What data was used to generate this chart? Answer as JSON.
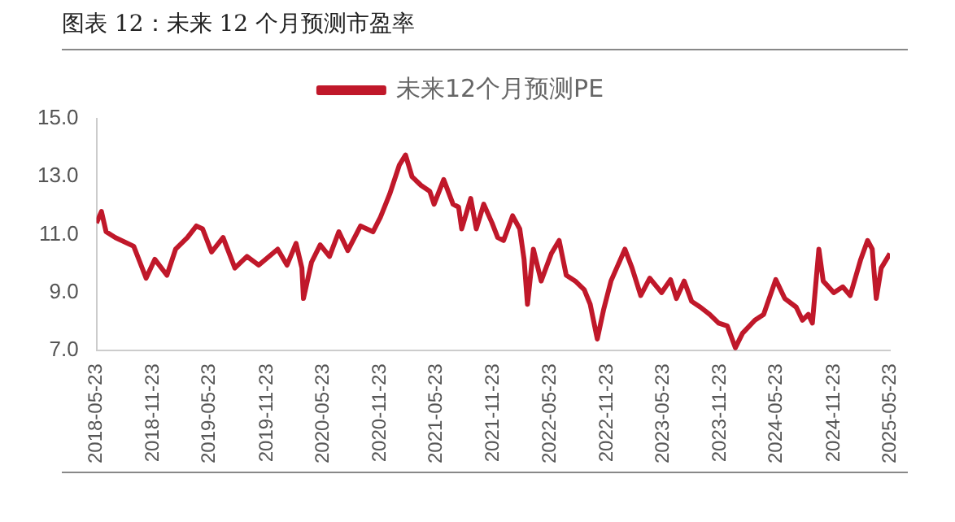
{
  "chart_data": {
    "type": "line",
    "title": "图表 12：未来 12 个月预测市盈率",
    "x": [
      "2018-05-23",
      "2018-06-08",
      "2018-06-23",
      "2018-07-23",
      "2018-09-20",
      "2018-10-10",
      "2018-10-30",
      "2018-11-27",
      "2019-01-05",
      "2019-02-02",
      "2019-03-12",
      "2019-04-10",
      "2019-04-30",
      "2019-05-29",
      "2019-07-05",
      "2019-08-12",
      "2019-09-20",
      "2019-10-28",
      "2019-12-28",
      "2020-01-27",
      "2020-02-25",
      "2020-03-15",
      "2020-03-20",
      "2020-04-15",
      "2020-05-13",
      "2020-06-12",
      "2020-07-12",
      "2020-08-10",
      "2020-09-20",
      "2020-10-30",
      "2020-11-23",
      "2020-12-23",
      "2021-01-23",
      "2021-02-12",
      "2021-03-05",
      "2021-04-03",
      "2021-05-01",
      "2021-05-15",
      "2021-06-15",
      "2021-07-15",
      "2021-08-02",
      "2021-08-12",
      "2021-09-10",
      "2021-09-28",
      "2021-10-22",
      "2021-11-18",
      "2021-12-06",
      "2021-12-25",
      "2022-01-23",
      "2022-02-15",
      "2022-03-01",
      "2022-03-12",
      "2022-03-31",
      "2022-04-25",
      "2022-05-28",
      "2022-06-22",
      "2022-07-15",
      "2022-08-13",
      "2022-09-11",
      "2022-09-30",
      "2022-10-23",
      "2022-11-12",
      "2022-12-06",
      "2023-01-20",
      "2023-02-12",
      "2023-03-12",
      "2023-04-10",
      "2023-05-18",
      "2023-06-16",
      "2023-07-05",
      "2023-07-30",
      "2023-08-23",
      "2023-09-20",
      "2023-10-20",
      "2023-11-18",
      "2023-12-16",
      "2024-01-11",
      "2024-02-03",
      "2024-03-14",
      "2024-04-11",
      "2024-05-20",
      "2024-06-18",
      "2024-07-25",
      "2024-08-14",
      "2024-09-02",
      "2024-09-15",
      "2024-10-06",
      "2024-10-20",
      "2024-11-23",
      "2024-12-22",
      "2025-01-15",
      "2025-02-18",
      "2025-03-12",
      "2025-03-27",
      "2025-04-09",
      "2025-04-25",
      "2025-05-23"
    ],
    "series": [
      {
        "name": "未来12个月预测PE",
        "color": "#c0182a",
        "values": [
          11.4,
          11.8,
          11.1,
          10.9,
          10.6,
          10.05,
          9.5,
          10.15,
          9.6,
          10.5,
          10.9,
          11.3,
          11.2,
          10.4,
          10.9,
          9.85,
          10.25,
          9.95,
          10.5,
          9.95,
          10.7,
          9.85,
          8.8,
          10.05,
          10.65,
          10.25,
          11.1,
          10.45,
          11.3,
          11.1,
          11.6,
          12.4,
          13.4,
          13.75,
          13.0,
          12.7,
          12.5,
          12.05,
          12.9,
          12.05,
          11.95,
          11.2,
          12.25,
          11.2,
          12.05,
          11.4,
          10.9,
          10.8,
          11.65,
          11.2,
          10.15,
          8.6,
          10.5,
          9.4,
          10.35,
          10.8,
          9.6,
          9.4,
          9.1,
          8.6,
          7.4,
          8.4,
          9.4,
          10.5,
          9.85,
          8.9,
          9.5,
          9.0,
          9.45,
          8.8,
          9.4,
          8.7,
          8.5,
          8.25,
          7.95,
          7.85,
          7.1,
          7.6,
          8.05,
          8.25,
          9.45,
          8.8,
          8.5,
          8.05,
          8.25,
          7.95,
          10.5,
          9.4,
          9.0,
          9.2,
          8.9,
          10.15,
          10.8,
          10.5,
          8.8,
          9.85,
          10.35
        ]
      }
    ],
    "xlim": [
      "2018-05-23",
      "2025-05-23"
    ],
    "xticks": [
      "2018-05-23",
      "2018-11-23",
      "2019-05-23",
      "2019-11-23",
      "2020-05-23",
      "2020-11-23",
      "2021-05-23",
      "2021-11-23",
      "2022-05-23",
      "2022-11-23",
      "2023-05-23",
      "2023-11-23",
      "2024-05-23",
      "2024-11-23",
      "2025-05-23"
    ],
    "ylim": [
      7,
      15
    ],
    "yticks": [
      {
        "value": 7,
        "label": "7.0"
      },
      {
        "value": 9,
        "label": "9.0"
      },
      {
        "value": 11,
        "label": "11.0"
      },
      {
        "value": 13,
        "label": "13.0"
      },
      {
        "value": 15,
        "label": "15.0"
      }
    ],
    "grid": false,
    "legend": "top",
    "marker": "none",
    "line_style": "solid"
  }
}
